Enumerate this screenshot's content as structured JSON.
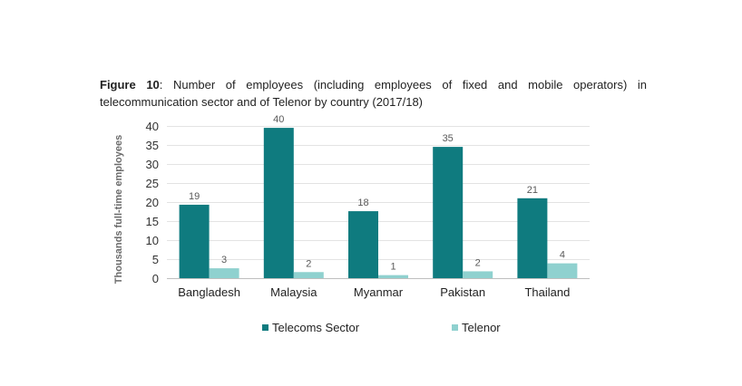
{
  "figure": {
    "label": "Figure 10",
    "caption": ": Number of employees (including employees of fixed and mobile operators) in telecommunication sector and of Telenor by country (2017/18)"
  },
  "chart_data": {
    "type": "bar",
    "categories": [
      "Bangladesh",
      "Malaysia",
      "Myanmar",
      "Pakistan",
      "Thailand"
    ],
    "series": [
      {
        "name": "Telecoms Sector",
        "values": [
          19.3,
          39.5,
          17.6,
          34.5,
          21.0
        ],
        "labels": [
          "19",
          "40",
          "18",
          "35",
          "21"
        ],
        "color": "#0f7b7f"
      },
      {
        "name": "Telenor",
        "values": [
          2.6,
          1.6,
          0.8,
          1.8,
          3.9
        ],
        "labels": [
          "3",
          "2",
          "1",
          "2",
          "4"
        ],
        "color": "#8fd1cf"
      }
    ],
    "ylabel": "Thousands full-time employees",
    "xlabel": "",
    "ylim": [
      0,
      40
    ],
    "yticks": [
      "0",
      "5",
      "10",
      "15",
      "20",
      "25",
      "30",
      "35",
      "40"
    ],
    "grid": true,
    "legend_position": "bottom"
  }
}
